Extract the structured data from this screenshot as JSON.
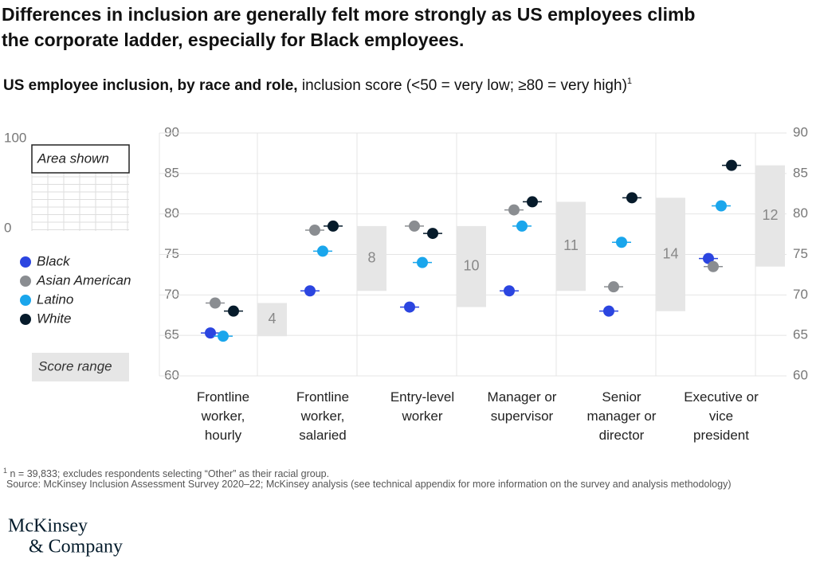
{
  "chart_data": {
    "type": "dot",
    "title": "Differences in inclusion are generally felt more strongly as US employees climb the corporate ladder, especially for Black employees.",
    "subtitle_bold": "US employee inclusion, by race and role,",
    "subtitle": "inclusion score (<50 = very low; ≥80 = very high)",
    "subtitle_note": "1",
    "categories": [
      "Frontline worker, hourly",
      "Frontline worker, salaried",
      "Entry-level worker",
      "Manager or supervisor",
      "Senior manager or director",
      "Executive or vice president"
    ],
    "series": [
      {
        "name": "Black",
        "color": "#2b45e0",
        "values": [
          65.3,
          70.5,
          68.5,
          70.5,
          68,
          74.5
        ]
      },
      {
        "name": "Asian American",
        "color": "#8a8d91",
        "values": [
          69,
          78,
          78.5,
          80.5,
          71,
          73.5
        ]
      },
      {
        "name": "Latino",
        "color": "#1aa6ec",
        "values": [
          64.9,
          75.4,
          74,
          78.5,
          76.5,
          81
        ]
      },
      {
        "name": "White",
        "color": "#061b2b",
        "values": [
          68,
          78.5,
          77.6,
          81.5,
          82,
          86
        ]
      }
    ],
    "ranges": [
      4,
      8,
      10,
      11,
      14,
      12
    ],
    "range_label": "Score range",
    "range_color": "#e6e6e6",
    "ylim": [
      60,
      90
    ],
    "yticks": [
      60,
      65,
      70,
      75,
      80,
      85,
      90
    ],
    "grid": true,
    "inset": {
      "ylim": [
        0,
        100
      ],
      "yticks": [
        0,
        100
      ],
      "label": "Area shown"
    },
    "footnote_mark": "1",
    "footnote": "n = 39,833; excludes respondents selecting “Other” as their racial group.",
    "source": "Source: McKinsey Inclusion Assessment Survey 2020–22; McKinsey analysis (see technical appendix for more information on the survey and analysis methodology)",
    "logo": [
      "McKinsey",
      "& Company"
    ]
  }
}
